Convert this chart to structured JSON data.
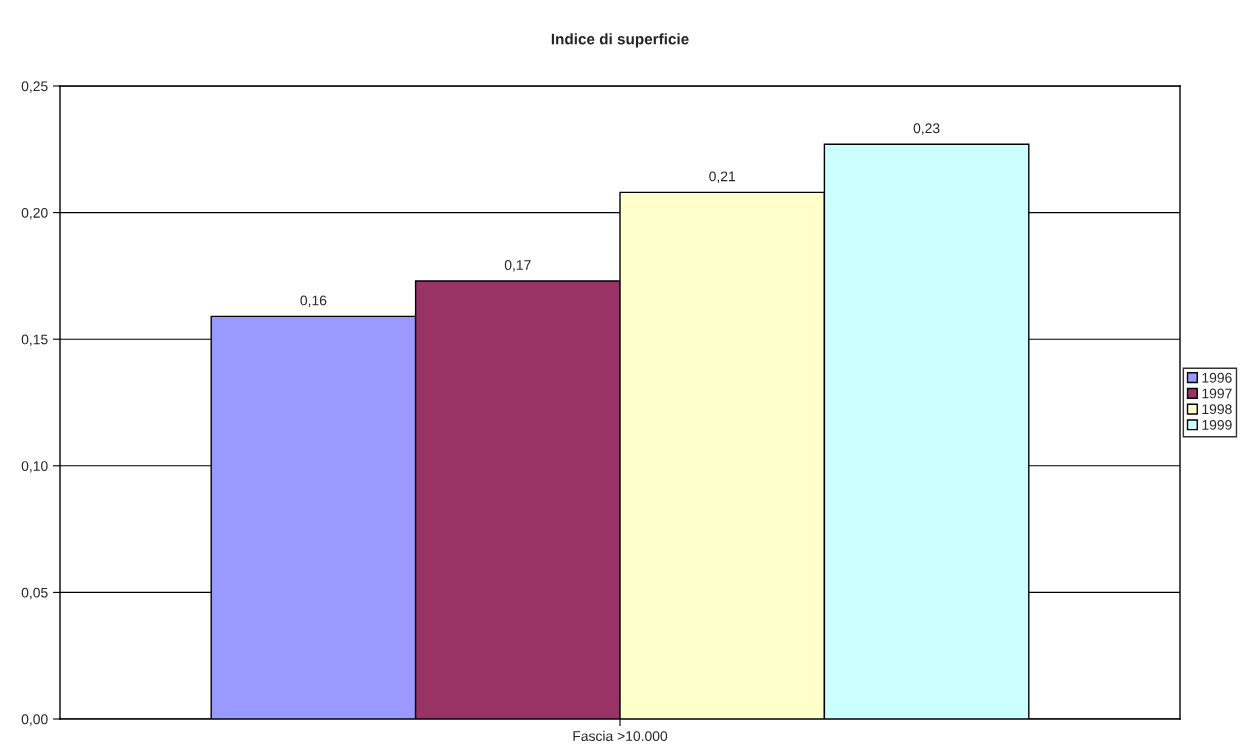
{
  "chart_data": {
    "type": "bar",
    "title": "Indice di superficie",
    "categories": [
      "Fascia >10.000"
    ],
    "series": [
      {
        "name": "1996",
        "color": "#9999ff",
        "values": [
          0.159
        ],
        "value_labels": [
          "0,16"
        ]
      },
      {
        "name": "1997",
        "color": "#993366",
        "values": [
          0.173
        ],
        "value_labels": [
          "0,17"
        ]
      },
      {
        "name": "1998",
        "color": "#ffffcc",
        "values": [
          0.208
        ],
        "value_labels": [
          "0,21"
        ]
      },
      {
        "name": "1999",
        "color": "#ccffff",
        "values": [
          0.227
        ],
        "value_labels": [
          "0,23"
        ]
      }
    ],
    "ylim": [
      0,
      0.25
    ],
    "yticks": [
      {
        "value": 0,
        "label": "0,00"
      },
      {
        "value": 0.05,
        "label": "0,05"
      },
      {
        "value": 0.1,
        "label": "0,10"
      },
      {
        "value": 0.15,
        "label": "0,15"
      },
      {
        "value": 0.2,
        "label": "0,20"
      },
      {
        "value": 0.25,
        "label": "0,25"
      }
    ],
    "grid": "y",
    "legend": "right"
  }
}
